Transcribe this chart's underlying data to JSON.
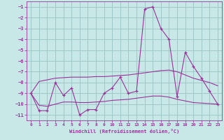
{
  "title": "",
  "xlabel": "Windchill (Refroidissement éolien,°C)",
  "ylabel": "",
  "bg_color": "#c8e8e8",
  "grid_color": "#a0c8c8",
  "line_color": "#993399",
  "x": [
    0,
    1,
    2,
    3,
    4,
    5,
    6,
    7,
    8,
    9,
    10,
    11,
    12,
    13,
    14,
    15,
    16,
    17,
    18,
    19,
    20,
    21,
    22,
    23
  ],
  "y_main": [
    -9.0,
    -10.6,
    -10.6,
    -8.0,
    -9.2,
    -8.5,
    -11.0,
    -10.5,
    -10.5,
    -9.0,
    -8.5,
    -7.5,
    -9.0,
    -8.8,
    -1.2,
    -1.0,
    -3.0,
    -4.0,
    -9.3,
    -5.2,
    -6.5,
    -7.6,
    -8.8,
    -10.0
  ],
  "y_upper": [
    -9.0,
    -7.9,
    -7.75,
    -7.6,
    -7.55,
    -7.5,
    -7.5,
    -7.5,
    -7.45,
    -7.45,
    -7.4,
    -7.35,
    -7.3,
    -7.2,
    -7.1,
    -7.0,
    -6.9,
    -6.85,
    -7.0,
    -7.3,
    -7.6,
    -7.8,
    -8.0,
    -8.3
  ],
  "y_lower": [
    -9.0,
    -10.1,
    -10.2,
    -10.0,
    -9.8,
    -9.8,
    -9.85,
    -9.85,
    -9.8,
    -9.75,
    -9.65,
    -9.6,
    -9.55,
    -9.45,
    -9.35,
    -9.25,
    -9.25,
    -9.35,
    -9.55,
    -9.7,
    -9.85,
    -9.9,
    -9.95,
    -10.0
  ],
  "ylim": [
    -11.5,
    -0.5
  ],
  "xlim": [
    -0.5,
    23.5
  ],
  "yticks": [
    -1,
    -2,
    -3,
    -4,
    -5,
    -6,
    -7,
    -8,
    -9,
    -10,
    -11
  ],
  "xticks": [
    0,
    1,
    2,
    3,
    4,
    5,
    6,
    7,
    8,
    9,
    10,
    11,
    12,
    13,
    14,
    15,
    16,
    17,
    18,
    19,
    20,
    21,
    22,
    23
  ]
}
